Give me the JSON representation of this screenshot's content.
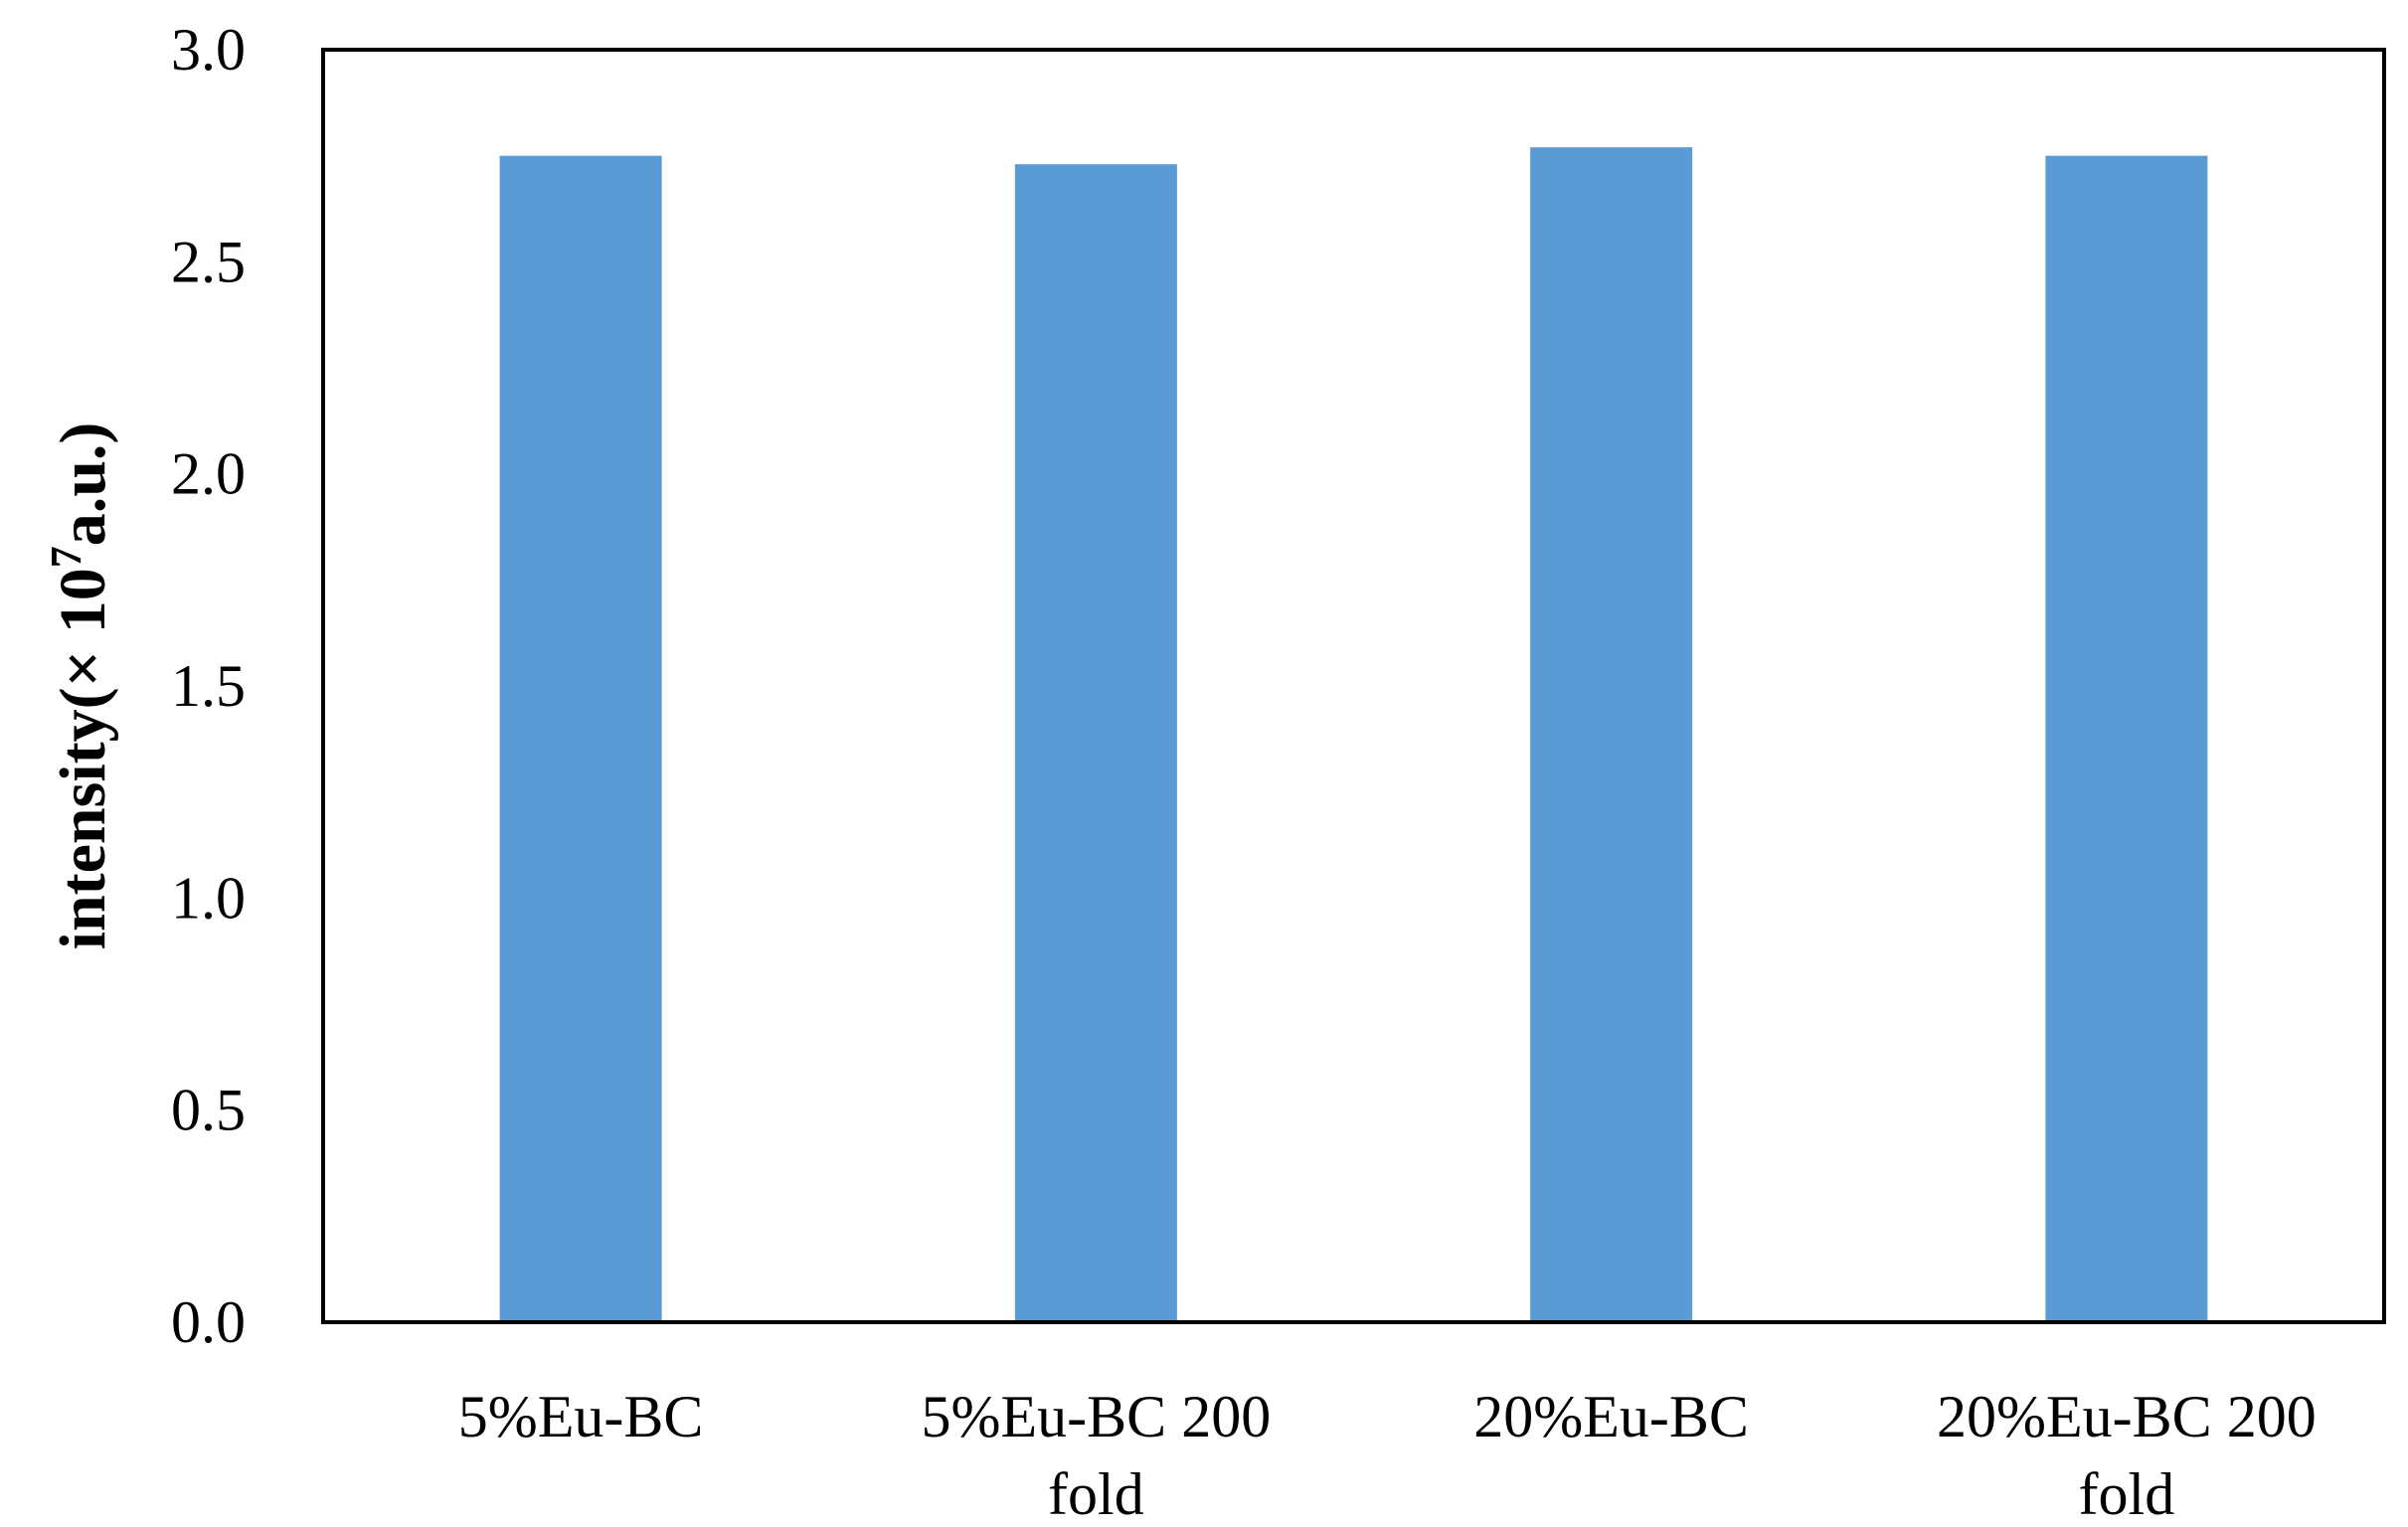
{
  "chart_data": {
    "type": "bar",
    "categories": [
      [
        "5%Eu-BC"
      ],
      [
        "5%Eu-BC 200",
        "fold"
      ],
      [
        "20%Eu-BC"
      ],
      [
        "20%Eu-BC 200",
        "fold"
      ]
    ],
    "values": [
      2.75,
      2.73,
      2.77,
      2.75
    ],
    "ylabel": {
      "prefix": "intensity(× 10",
      "superscript": "7",
      "suffix": "a.u.)"
    },
    "yticks": [
      "0.0",
      "0.5",
      "1.0",
      "1.5",
      "2.0",
      "2.5",
      "3.0"
    ],
    "ylim": [
      0,
      3.0
    ],
    "grid": false,
    "legend": "none",
    "bar_color": "#5b9bd5"
  }
}
